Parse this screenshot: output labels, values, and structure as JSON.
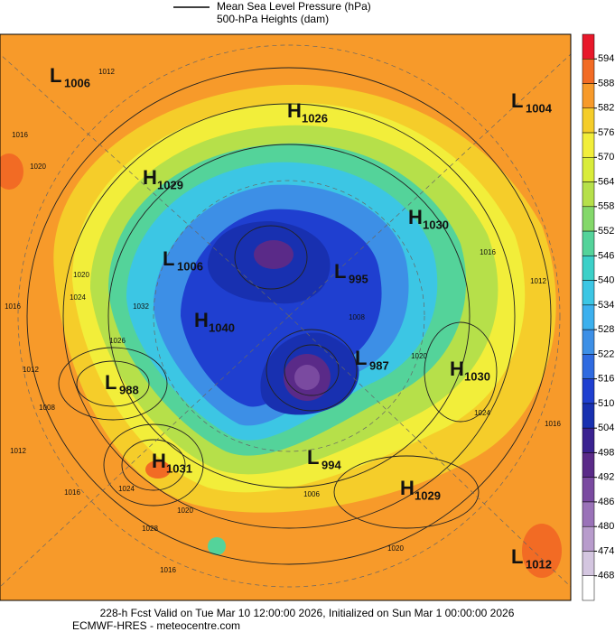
{
  "header": {
    "legend": [
      "Mean Sea Level Pressure (hPa)",
      "500-hPa Heights (dam)"
    ]
  },
  "centers": [
    {
      "letter": "L",
      "value": 1006
    },
    {
      "letter": "H",
      "value": 1026
    },
    {
      "letter": "L",
      "value": 1004
    },
    {
      "letter": "H",
      "value": 1029
    },
    {
      "letter": "H",
      "value": 1030
    },
    {
      "letter": "L",
      "value": 1006
    },
    {
      "letter": "L",
      "value": 995
    },
    {
      "letter": "H",
      "value": 1040
    },
    {
      "letter": "L",
      "value": 987
    },
    {
      "letter": "H",
      "value": 1030
    },
    {
      "letter": "L",
      "value": 988
    },
    {
      "letter": "H",
      "value": 1031
    },
    {
      "letter": "L",
      "value": 994
    },
    {
      "letter": "H",
      "value": 1029
    },
    {
      "letter": "L",
      "value": 1012
    }
  ],
  "isobar_labels": [
    1012,
    1016,
    1020,
    1016,
    1012,
    1008,
    1012,
    1016,
    1024,
    1028,
    1016,
    1020,
    1020,
    1024,
    1032,
    1026,
    1008,
    1006,
    1020,
    1024,
    1016,
    1012,
    1016,
    1020
  ],
  "colorbar": {
    "levels": [
      594,
      588,
      582,
      576,
      570,
      564,
      558,
      552,
      546,
      540,
      534,
      528,
      522,
      516,
      510,
      504,
      498,
      492,
      486,
      480,
      474,
      468
    ],
    "colors": [
      "#e8182a",
      "#f26b24",
      "#f79a2a",
      "#f5cd2a",
      "#f2ee3a",
      "#d9ec3a",
      "#b6e04a",
      "#84d86a",
      "#54d39a",
      "#3cd0c8",
      "#3cc6e4",
      "#3cb0ee",
      "#3d8fe6",
      "#2f6ae0",
      "#1f3fd0",
      "#1830b0",
      "#3a2290",
      "#5a2a88",
      "#7a4aa0",
      "#9a72b8",
      "#b89ccc",
      "#d4c6e0",
      "#ffffff"
    ]
  },
  "footer": [
    "228-h Fcst Valid on Tue Mar 10 12:00:00 2026, Initialized on Sun Mar  1 00:00:00 2026",
    "ECMWF-HRES  - meteocentre.com"
  ]
}
